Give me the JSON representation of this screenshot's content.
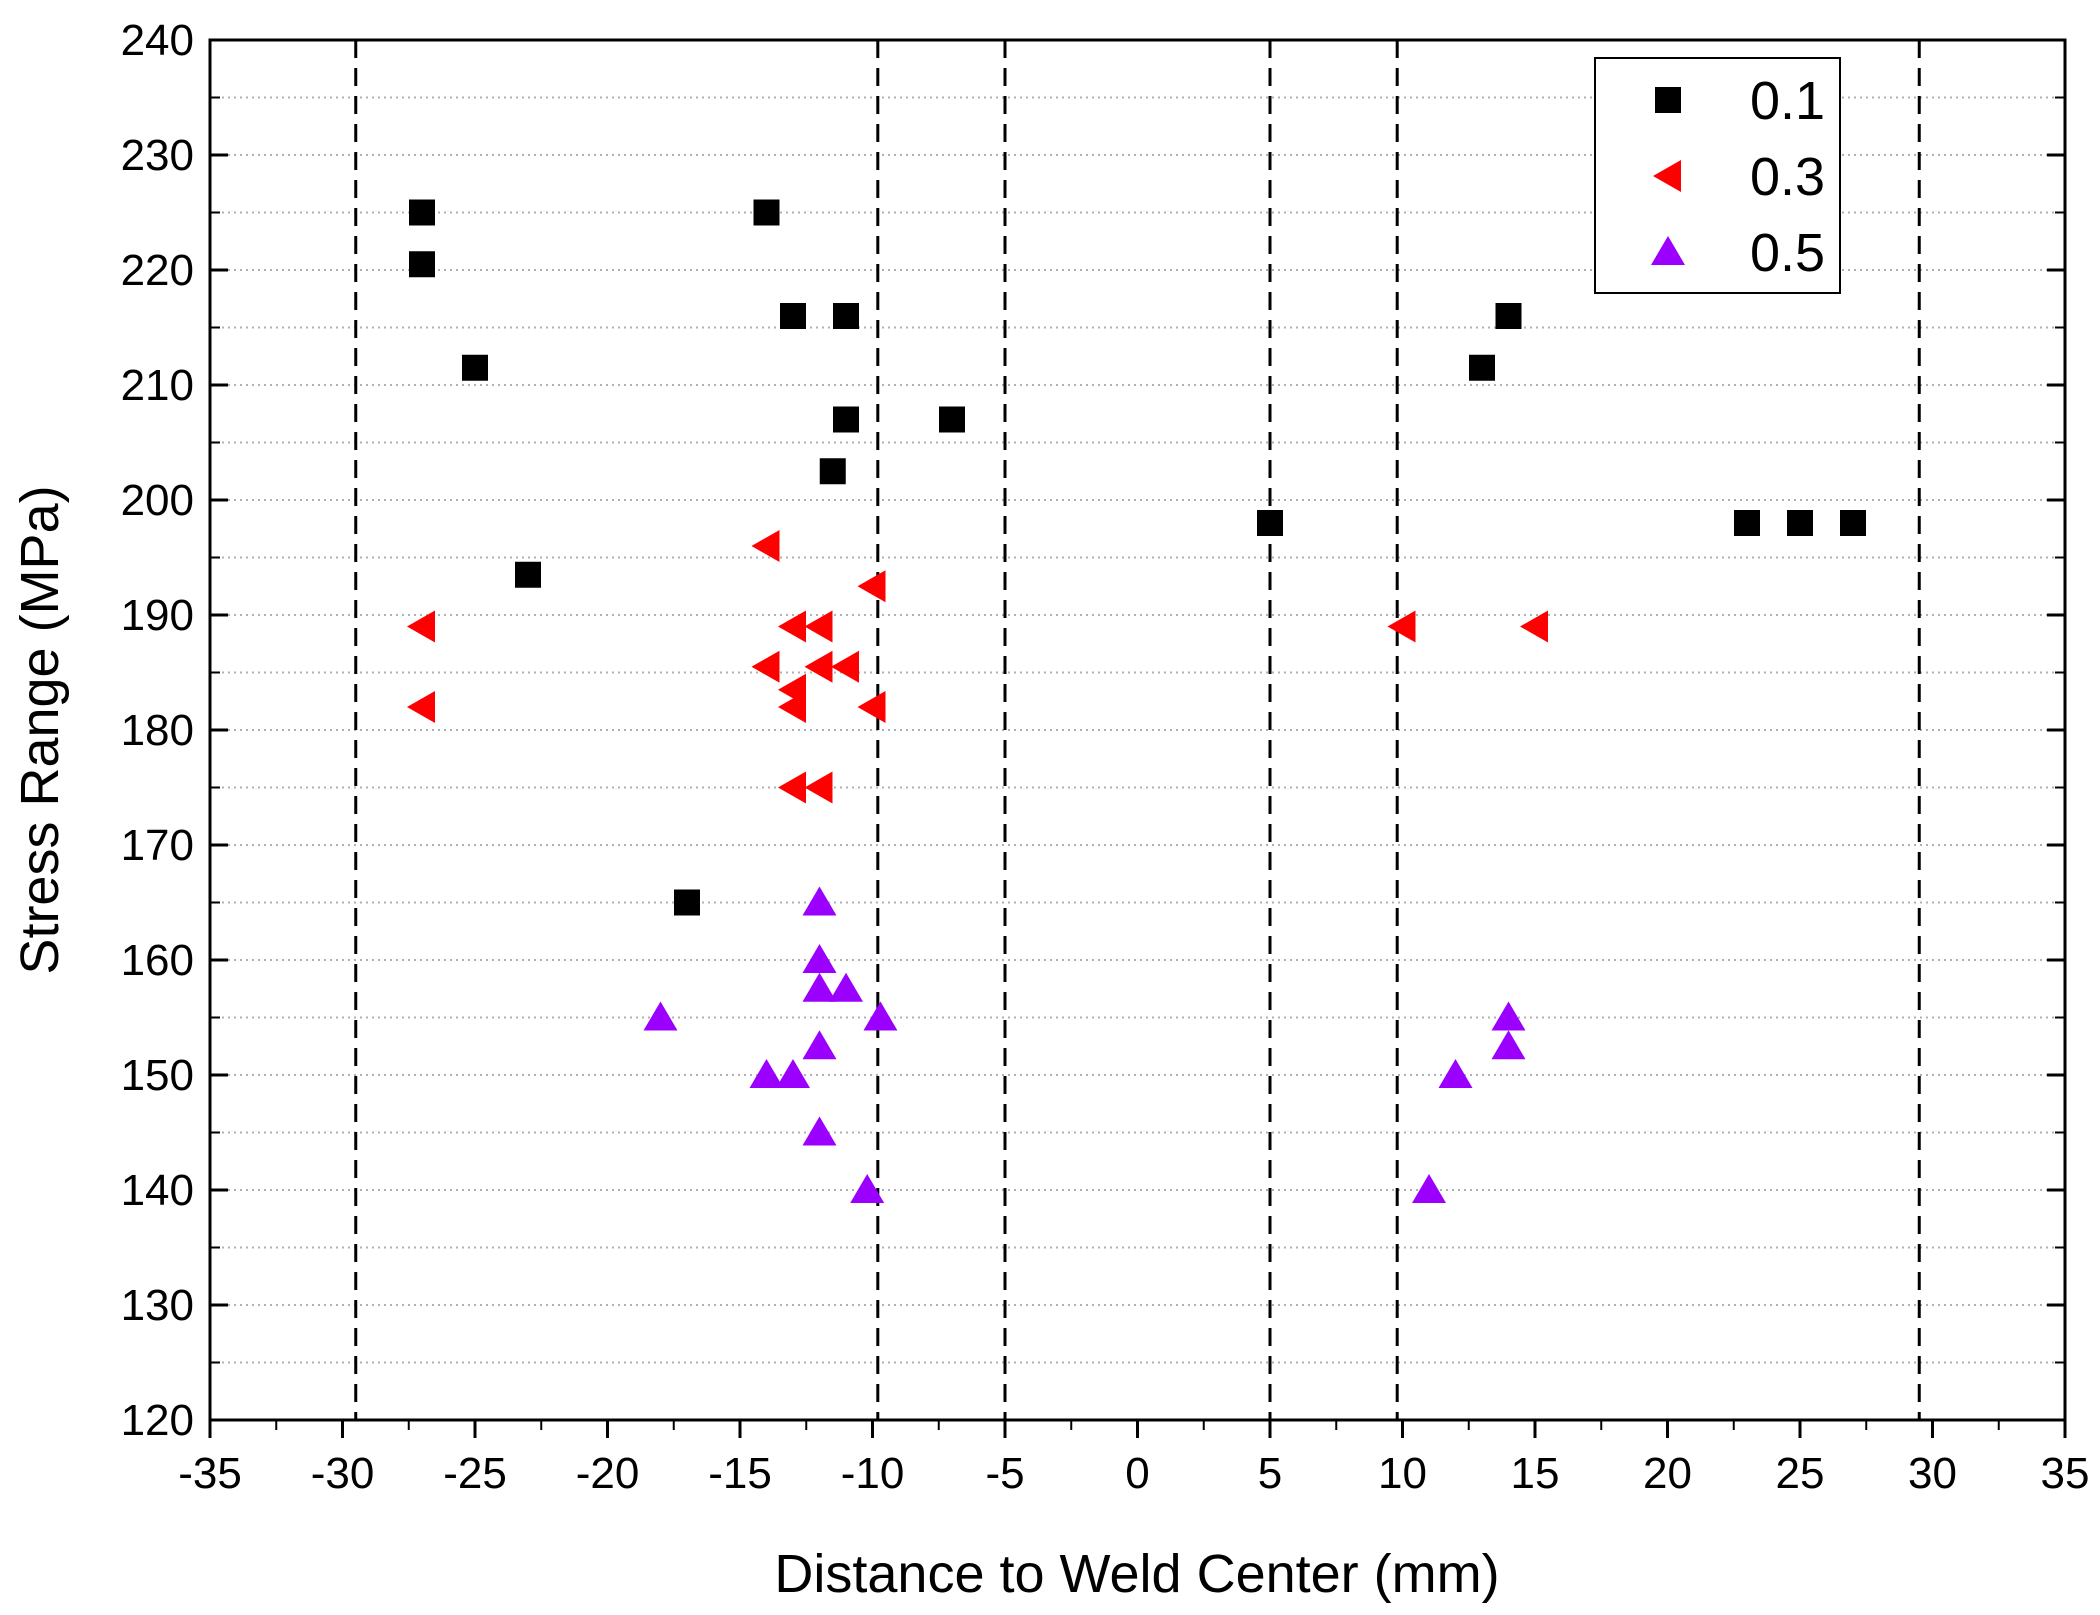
{
  "chart_data": {
    "type": "scatter",
    "title": "",
    "xlabel": "Distance to Weld Center (mm)",
    "ylabel": "Stress Range (MPa)",
    "xlim": [
      -35,
      35
    ],
    "ylim": [
      120,
      240
    ],
    "xticks": [
      -35,
      -30,
      -25,
      -20,
      -15,
      -10,
      -5,
      0,
      5,
      10,
      15,
      20,
      25,
      30,
      35
    ],
    "yticks": [
      120,
      130,
      140,
      150,
      160,
      170,
      180,
      190,
      200,
      210,
      220,
      230,
      240
    ],
    "xtick_labels": [
      "-35",
      "-30",
      "-25",
      "-20",
      "-15",
      "-10",
      "-5",
      "0",
      "5",
      "10",
      "15",
      "20",
      "25",
      "30",
      "35"
    ],
    "ytick_labels": [
      "120",
      "130",
      "140",
      "150",
      "160",
      "170",
      "180",
      "190",
      "200",
      "210",
      "220",
      "230",
      "240"
    ],
    "grid": "horizontal dotted",
    "legend_position": "top-right",
    "reference_lines_x": [
      -29.5,
      -9.8,
      -5,
      5,
      9.8,
      29.5
    ],
    "series": [
      {
        "name": "0.1",
        "marker": "square",
        "color": "#000000",
        "points": [
          [
            -27,
            225
          ],
          [
            -27,
            220.5
          ],
          [
            -25,
            211.5
          ],
          [
            -23,
            193.5
          ],
          [
            -17,
            165
          ],
          [
            -14,
            225
          ],
          [
            -13,
            216
          ],
          [
            -11,
            216
          ],
          [
            -11,
            207
          ],
          [
            -11.5,
            202.5
          ],
          [
            -7,
            207
          ],
          [
            5,
            198
          ],
          [
            13,
            211.5
          ],
          [
            14,
            216
          ],
          [
            23,
            198
          ],
          [
            25,
            198
          ],
          [
            27,
            198
          ]
        ]
      },
      {
        "name": "0.3",
        "marker": "triangle-left",
        "color": "#ff0000",
        "points": [
          [
            -27,
            189
          ],
          [
            -27,
            182
          ],
          [
            -14,
            196
          ],
          [
            -14,
            185.5
          ],
          [
            -13,
            189
          ],
          [
            -13,
            183.5
          ],
          [
            -13,
            182
          ],
          [
            -13,
            175
          ],
          [
            -12,
            189
          ],
          [
            -12,
            185.5
          ],
          [
            -12,
            175
          ],
          [
            -11,
            185.5
          ],
          [
            -10,
            192.5
          ],
          [
            -10,
            182
          ],
          [
            10,
            189
          ],
          [
            15,
            189
          ]
        ]
      },
      {
        "name": "0.5",
        "marker": "triangle-up",
        "color": "#9b00ff",
        "points": [
          [
            -18,
            155
          ],
          [
            -14,
            150
          ],
          [
            -13,
            150
          ],
          [
            -12,
            165
          ],
          [
            -12,
            160
          ],
          [
            -12,
            157.5
          ],
          [
            -12,
            152.5
          ],
          [
            -12,
            145
          ],
          [
            -11,
            157.5
          ],
          [
            -10.2,
            140
          ],
          [
            -9.7,
            155
          ],
          [
            11,
            140
          ],
          [
            12,
            150
          ],
          [
            14,
            155
          ],
          [
            14,
            152.5
          ]
        ]
      }
    ]
  }
}
